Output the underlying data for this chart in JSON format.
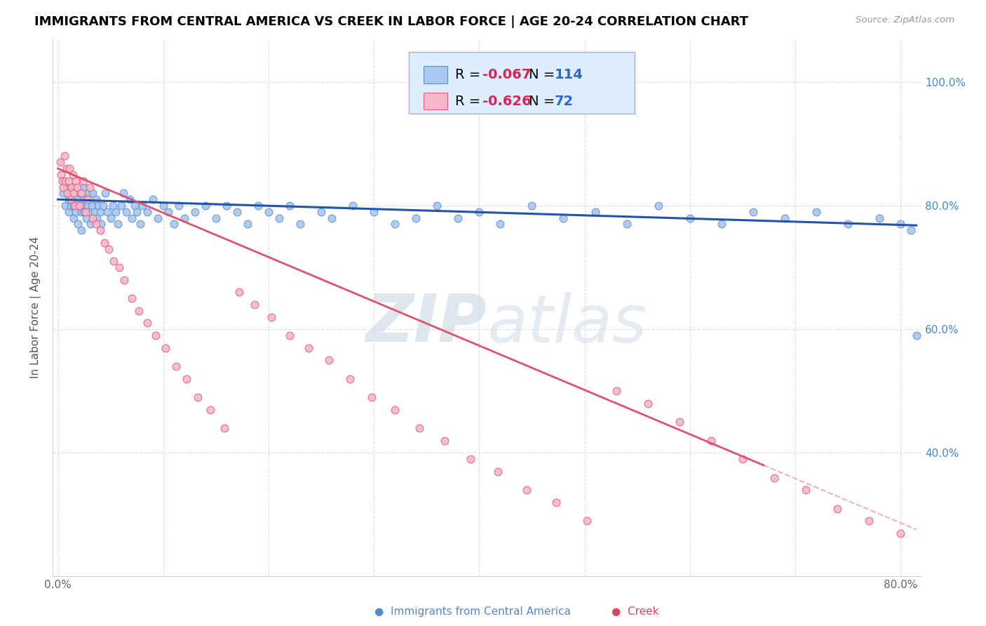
{
  "title": "IMMIGRANTS FROM CENTRAL AMERICA VS CREEK IN LABOR FORCE | AGE 20-24 CORRELATION CHART",
  "source": "Source: ZipAtlas.com",
  "ylabel": "In Labor Force | Age 20-24",
  "xlim": [
    -0.005,
    0.82
  ],
  "ylim": [
    0.2,
    1.07
  ],
  "xticks": [
    0.0,
    0.1,
    0.2,
    0.3,
    0.4,
    0.5,
    0.6,
    0.7,
    0.8
  ],
  "xtick_labels": [
    "0.0%",
    "",
    "",
    "",
    "",
    "",
    "",
    "",
    "80.0%"
  ],
  "yticks": [
    0.4,
    0.6,
    0.8,
    1.0
  ],
  "blue_R": -0.067,
  "blue_N": 114,
  "pink_R": -0.626,
  "pink_N": 72,
  "blue_scatter_x": [
    0.005,
    0.007,
    0.008,
    0.01,
    0.01,
    0.012,
    0.013,
    0.015,
    0.015,
    0.016,
    0.017,
    0.018,
    0.019,
    0.02,
    0.021,
    0.022,
    0.022,
    0.023,
    0.024,
    0.025,
    0.026,
    0.027,
    0.028,
    0.029,
    0.03,
    0.031,
    0.032,
    0.033,
    0.035,
    0.036,
    0.037,
    0.038,
    0.04,
    0.041,
    0.043,
    0.045,
    0.047,
    0.05,
    0.052,
    0.055,
    0.057,
    0.06,
    0.062,
    0.065,
    0.068,
    0.07,
    0.073,
    0.075,
    0.078,
    0.08,
    0.085,
    0.09,
    0.095,
    0.1,
    0.105,
    0.11,
    0.115,
    0.12,
    0.13,
    0.14,
    0.15,
    0.16,
    0.17,
    0.18,
    0.19,
    0.2,
    0.21,
    0.22,
    0.23,
    0.25,
    0.26,
    0.28,
    0.3,
    0.32,
    0.34,
    0.36,
    0.38,
    0.4,
    0.42,
    0.45,
    0.48,
    0.51,
    0.54,
    0.57,
    0.6,
    0.63,
    0.66,
    0.69,
    0.72,
    0.75,
    0.78,
    0.8,
    0.81,
    0.815
  ],
  "blue_scatter_y": [
    0.82,
    0.8,
    0.83,
    0.79,
    0.81,
    0.8,
    0.82,
    0.78,
    0.8,
    0.83,
    0.79,
    0.81,
    0.77,
    0.8,
    0.82,
    0.79,
    0.76,
    0.8,
    0.83,
    0.79,
    0.81,
    0.78,
    0.8,
    0.82,
    0.79,
    0.77,
    0.8,
    0.82,
    0.79,
    0.81,
    0.78,
    0.8,
    0.79,
    0.77,
    0.8,
    0.82,
    0.79,
    0.78,
    0.8,
    0.79,
    0.77,
    0.8,
    0.82,
    0.79,
    0.81,
    0.78,
    0.8,
    0.79,
    0.77,
    0.8,
    0.79,
    0.81,
    0.78,
    0.8,
    0.79,
    0.77,
    0.8,
    0.78,
    0.79,
    0.8,
    0.78,
    0.8,
    0.79,
    0.77,
    0.8,
    0.79,
    0.78,
    0.8,
    0.77,
    0.79,
    0.78,
    0.8,
    0.79,
    0.77,
    0.78,
    0.8,
    0.78,
    0.79,
    0.77,
    0.8,
    0.78,
    0.79,
    0.77,
    0.8,
    0.78,
    0.77,
    0.79,
    0.78,
    0.79,
    0.77,
    0.78,
    0.77,
    0.76,
    0.59
  ],
  "pink_scatter_x": [
    0.002,
    0.003,
    0.004,
    0.005,
    0.006,
    0.007,
    0.008,
    0.009,
    0.01,
    0.011,
    0.012,
    0.013,
    0.014,
    0.015,
    0.016,
    0.017,
    0.018,
    0.02,
    0.022,
    0.024,
    0.026,
    0.028,
    0.03,
    0.033,
    0.036,
    0.04,
    0.044,
    0.048,
    0.053,
    0.058,
    0.063,
    0.07,
    0.077,
    0.085,
    0.093,
    0.102,
    0.112,
    0.122,
    0.133,
    0.145,
    0.158,
    0.172,
    0.187,
    0.203,
    0.22,
    0.238,
    0.257,
    0.277,
    0.298,
    0.32,
    0.343,
    0.367,
    0.392,
    0.418,
    0.445,
    0.473,
    0.502,
    0.53,
    0.56,
    0.59,
    0.62,
    0.65,
    0.68,
    0.71,
    0.74,
    0.77,
    0.8
  ],
  "pink_scatter_y": [
    0.87,
    0.85,
    0.84,
    0.83,
    0.88,
    0.84,
    0.86,
    0.82,
    0.84,
    0.86,
    0.81,
    0.83,
    0.85,
    0.82,
    0.8,
    0.84,
    0.83,
    0.8,
    0.82,
    0.84,
    0.79,
    0.81,
    0.83,
    0.78,
    0.77,
    0.76,
    0.74,
    0.73,
    0.71,
    0.7,
    0.68,
    0.65,
    0.63,
    0.61,
    0.59,
    0.57,
    0.54,
    0.52,
    0.49,
    0.47,
    0.44,
    0.66,
    0.64,
    0.62,
    0.59,
    0.57,
    0.55,
    0.52,
    0.49,
    0.47,
    0.44,
    0.42,
    0.39,
    0.37,
    0.34,
    0.32,
    0.29,
    0.5,
    0.48,
    0.45,
    0.42,
    0.39,
    0.36,
    0.34,
    0.31,
    0.29,
    0.27
  ],
  "blue_line": {
    "x0": 0.0,
    "y0": 0.81,
    "x1": 0.815,
    "y1": 0.768
  },
  "pink_line_solid": {
    "x0": 0.0,
    "y0": 0.86,
    "x1": 0.67,
    "y1": 0.38
  },
  "pink_line_dash": {
    "x0": 0.67,
    "y0": 0.38,
    "x1": 0.815,
    "y1": 0.276
  },
  "blue_dot_color": "#a8c8f0",
  "blue_dot_edge": "#6090d0",
  "pink_dot_color": "#f4b8c8",
  "pink_dot_edge": "#e06080",
  "blue_line_color": "#2255aa",
  "pink_line_color": "#e05070",
  "watermark_color": "#d0dce8",
  "grid_color": "#dddddd",
  "right_tick_color": "#4488cc",
  "legend_face": "#ddeeff",
  "legend_edge": "#aaaacc",
  "legend_R_color": "#dd2255",
  "legend_N_color": "#3366cc",
  "bottom_blue_color": "#5588cc",
  "bottom_pink_color": "#dd4466",
  "background": "#ffffff"
}
